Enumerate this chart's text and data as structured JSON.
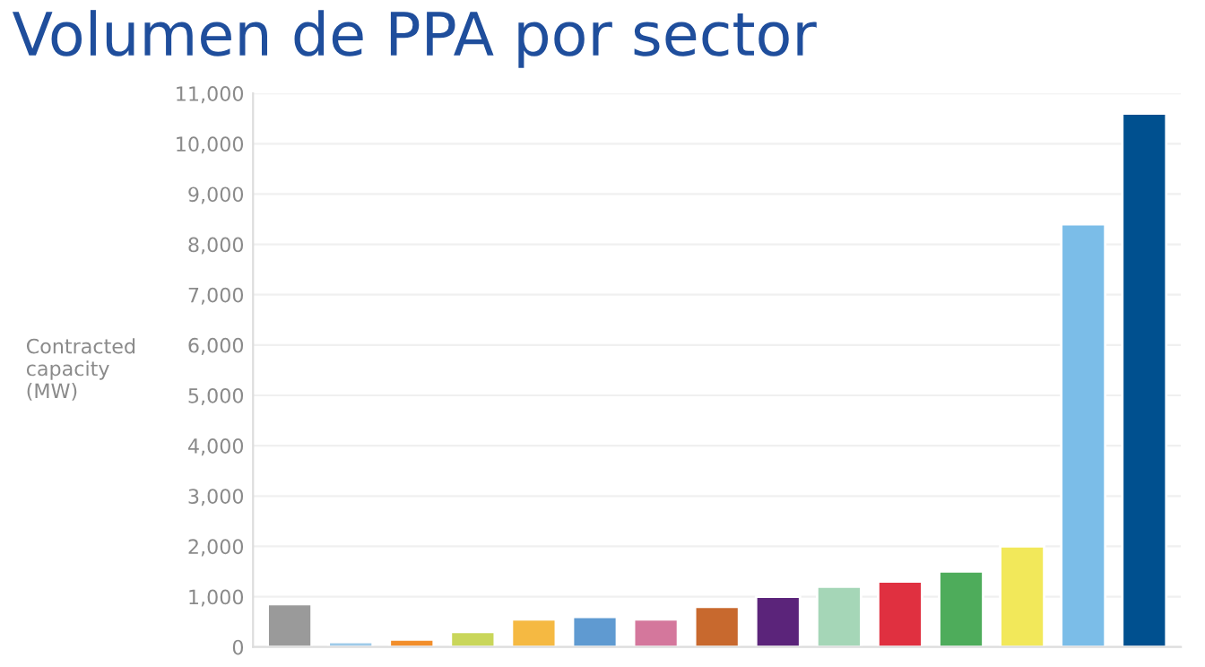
{
  "chart_data": {
    "type": "bar",
    "title": "Volumen de PPA por sector",
    "ylabel": "Contracted\ncapacity\n(MW)",
    "categories": [
      null,
      null,
      null,
      null,
      null,
      null,
      null,
      null,
      null,
      null,
      null,
      null,
      null,
      null,
      null
    ],
    "values": [
      850,
      100,
      150,
      300,
      550,
      600,
      550,
      800,
      1000,
      1200,
      1300,
      1500,
      2000,
      8400,
      10600
    ],
    "colors": [
      "#9a9a9a",
      "#9ecae9",
      "#f28e2b",
      "#c9d65a",
      "#f5b942",
      "#5f9ad1",
      "#d4779c",
      "#c8692e",
      "#5b247a",
      "#a5d6b7",
      "#e03040",
      "#4eac5b",
      "#f2e85a",
      "#7bbde8",
      "#00508f"
    ],
    "ylim": [
      0,
      11000
    ],
    "yticks": [
      {
        "value": 0,
        "label": "0"
      },
      {
        "value": 1000,
        "label": "1,000"
      },
      {
        "value": 2000,
        "label": "2,000"
      },
      {
        "value": 3000,
        "label": "3,000"
      },
      {
        "value": 4000,
        "label": "4,000"
      },
      {
        "value": 5000,
        "label": "5,000"
      },
      {
        "value": 6000,
        "label": "6,000"
      },
      {
        "value": 7000,
        "label": "7,000"
      },
      {
        "value": 8000,
        "label": "8,000"
      },
      {
        "value": 9000,
        "label": "9,000"
      },
      {
        "value": 10000,
        "label": "10,000"
      },
      {
        "value": 11000,
        "label": "11,000"
      }
    ],
    "grid": "y"
  }
}
